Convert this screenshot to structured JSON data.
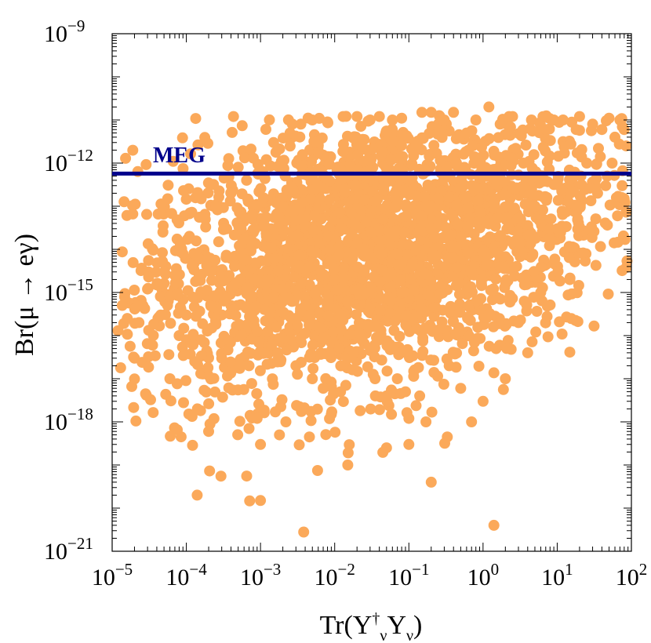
{
  "chart_data": {
    "type": "scatter",
    "title": "",
    "xlabel": "Tr(Y_ν^† Y_ν)",
    "ylabel": "Br(μ → eγ)",
    "x_scale": "log",
    "y_scale": "log",
    "xlim": [
      1e-05,
      100
    ],
    "ylim": [
      1e-21,
      1e-09
    ],
    "x_ticks": [
      {
        "base": "10",
        "exp": "−5"
      },
      {
        "base": "10",
        "exp": "−4"
      },
      {
        "base": "10",
        "exp": "−3"
      },
      {
        "base": "10",
        "exp": "−2"
      },
      {
        "base": "10",
        "exp": "−1"
      },
      {
        "base": "10",
        "exp": "0"
      },
      {
        "base": "10",
        "exp": "1"
      },
      {
        "base": "10",
        "exp": "2"
      }
    ],
    "y_ticks": [
      {
        "base": "10",
        "exp": "−21"
      },
      {
        "base": "10",
        "exp": "−18"
      },
      {
        "base": "10",
        "exp": "−15"
      },
      {
        "base": "10",
        "exp": "−12"
      },
      {
        "base": "10",
        "exp": "−9"
      }
    ],
    "grid": false,
    "point_color": "#fba95a",
    "line_color": "#00008b",
    "meg_bound": {
      "label": "MEG",
      "y": 5.7e-13
    },
    "points": [
      [
        1.2e-05,
        1.3e-16
      ],
      [
        1.3e-05,
        1.8e-17
      ],
      [
        1.6e-05,
        2.5e-16
      ],
      [
        2e-05,
        3e-17
      ],
      [
        2.3e-05,
        2e-16
      ],
      [
        2.6e-05,
        5e-16
      ],
      [
        3e-05,
        1.2e-15
      ],
      [
        3.5e-05,
        6e-17
      ],
      [
        4e-05,
        1.5e-15
      ],
      [
        4.5e-05,
        3e-16
      ],
      [
        5e-05,
        3e-15
      ],
      [
        6e-05,
        8e-16
      ],
      [
        6e-05,
        1e-17
      ],
      [
        7e-05,
        2.5e-15
      ],
      [
        8e-05,
        1e-16
      ],
      [
        8.5e-05,
        4.5e-19
      ],
      [
        9e-05,
        8e-15
      ],
      [
        0.0001,
        3e-16
      ],
      [
        0.00011,
        2e-14
      ],
      [
        0.00013,
        2.5e-17
      ],
      [
        0.00014,
        2e-20
      ],
      [
        0.00015,
        6e-15
      ],
      [
        0.00018,
        5e-14
      ],
      [
        0.0002,
        6e-19
      ],
      [
        0.00022,
        1.5e-16
      ],
      [
        0.00025,
        1e-13
      ],
      [
        0.0003,
        3e-17
      ],
      [
        0.00035,
        3e-14
      ],
      [
        0.0004,
        2e-13
      ],
      [
        0.00045,
        1.5e-15
      ],
      [
        0.0005,
        8e-13
      ],
      [
        0.00055,
        1e-16
      ],
      [
        0.00065,
        4e-13
      ],
      [
        0.0007,
        2e-17
      ],
      [
        0.0008,
        1.3e-12
      ],
      [
        0.0009,
        1.2e-18
      ],
      [
        0.001,
        3e-19
      ],
      [
        0.001,
        1.5e-20
      ],
      [
        0.0012,
        1.2e-12
      ],
      [
        0.0013,
        2e-15
      ],
      [
        0.0015,
        3e-12
      ],
      [
        0.0017,
        4e-17
      ],
      [
        0.0018,
        5e-19
      ],
      [
        0.002,
        1e-13
      ],
      [
        0.0022,
        1e-18
      ],
      [
        0.0025,
        5e-12
      ],
      [
        0.003,
        2e-17
      ],
      [
        0.0035,
        8e-12
      ],
      [
        0.004,
        5e-16
      ],
      [
        0.005,
        1e-17
      ],
      [
        0.005,
        1e-11
      ],
      [
        0.006,
        3e-13
      ],
      [
        0.007,
        6e-18
      ],
      [
        0.008,
        9e-12
      ],
      [
        0.009,
        1.5e-18
      ],
      [
        0.01,
        2e-15
      ],
      [
        0.012,
        5e-18
      ],
      [
        0.013,
        1.2e-11
      ],
      [
        0.015,
        1e-19
      ],
      [
        0.018,
        4e-17
      ],
      [
        0.02,
        1.2e-11
      ],
      [
        0.025,
        3e-15
      ],
      [
        0.03,
        1e-11
      ],
      [
        0.035,
        1e-17
      ],
      [
        0.04,
        1.2e-11
      ],
      [
        0.045,
        5e-14
      ],
      [
        0.05,
        2.5e-19
      ],
      [
        0.05,
        4e-18
      ],
      [
        0.06,
        1e-11
      ],
      [
        0.07,
        1e-17
      ],
      [
        0.08,
        1.1e-11
      ],
      [
        0.09,
        5e-18
      ],
      [
        0.1,
        1.2e-18
      ],
      [
        0.1,
        3e-19
      ],
      [
        0.12,
        3e-12
      ],
      [
        0.14,
        4e-18
      ],
      [
        0.15,
        1.5e-11
      ],
      [
        0.17,
        1e-18
      ],
      [
        0.2,
        4e-20
      ],
      [
        0.2,
        1.5e-11
      ],
      [
        0.25,
        1.5e-13
      ],
      [
        0.3,
        1e-11
      ],
      [
        0.35,
        2e-17
      ],
      [
        0.4,
        1.5e-11
      ],
      [
        0.5,
        6e-18
      ],
      [
        0.6,
        5e-12
      ],
      [
        0.7,
        1e-18
      ],
      [
        0.8,
        1e-11
      ],
      [
        1,
        3e-18
      ],
      [
        1.2,
        2e-11
      ],
      [
        1.4,
        4e-21
      ],
      [
        1.5,
        5e-17
      ],
      [
        1.7,
        8e-12
      ],
      [
        2,
        1e-17
      ],
      [
        2.5,
        1.2e-11
      ],
      [
        3,
        2e-16
      ],
      [
        3.5,
        1e-12
      ],
      [
        4,
        4e-17
      ],
      [
        4.5,
        1e-11
      ],
      [
        5,
        1e-13
      ],
      [
        6,
        1e-15
      ],
      [
        7,
        6e-12
      ],
      [
        8,
        3e-14
      ],
      [
        9,
        1e-11
      ],
      [
        10,
        3e-14
      ],
      [
        12,
        1e-11
      ],
      [
        15,
        2e-13
      ],
      [
        18,
        6e-12
      ],
      [
        20,
        1.2e-11
      ],
      [
        25,
        1e-12
      ],
      [
        30,
        8e-12
      ],
      [
        35,
        2e-13
      ],
      [
        40,
        6e-12
      ],
      [
        45,
        3e-13
      ],
      [
        50,
        1.1e-11
      ],
      [
        55,
        1e-12
      ],
      [
        60,
        4e-12
      ],
      [
        65,
        6e-14
      ],
      [
        70,
        1e-11
      ],
      [
        75,
        3e-13
      ],
      [
        80,
        6e-12
      ],
      [
        80,
        1.5e-13
      ],
      [
        85,
        2.5e-12
      ]
    ],
    "cloud": {
      "count": 2600,
      "log_x_center": -1.5,
      "log_y_center": -14.0,
      "log_x_spread": 1.6,
      "log_y_spread": 1.55,
      "slope": 0.35
    }
  }
}
